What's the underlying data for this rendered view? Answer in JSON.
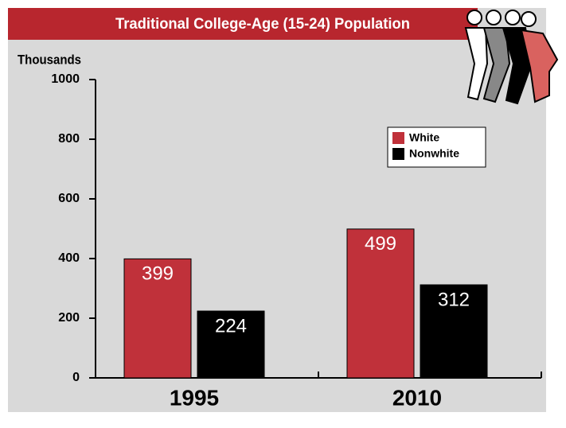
{
  "chart_data": {
    "type": "bar",
    "title": "Traditional College-Age (15-24) Population",
    "y_label": "Thousands",
    "categories": [
      "1995",
      "2010"
    ],
    "series": [
      {
        "name": "White",
        "color": "#c0313a",
        "values": [
          399,
          499
        ]
      },
      {
        "name": "Nonwhite",
        "color": "#000000",
        "values": [
          224,
          312
        ]
      }
    ],
    "ylim": [
      0,
      1000
    ],
    "yticks": [
      0,
      200,
      400,
      600,
      800,
      1000
    ],
    "legend": "upper-right"
  }
}
